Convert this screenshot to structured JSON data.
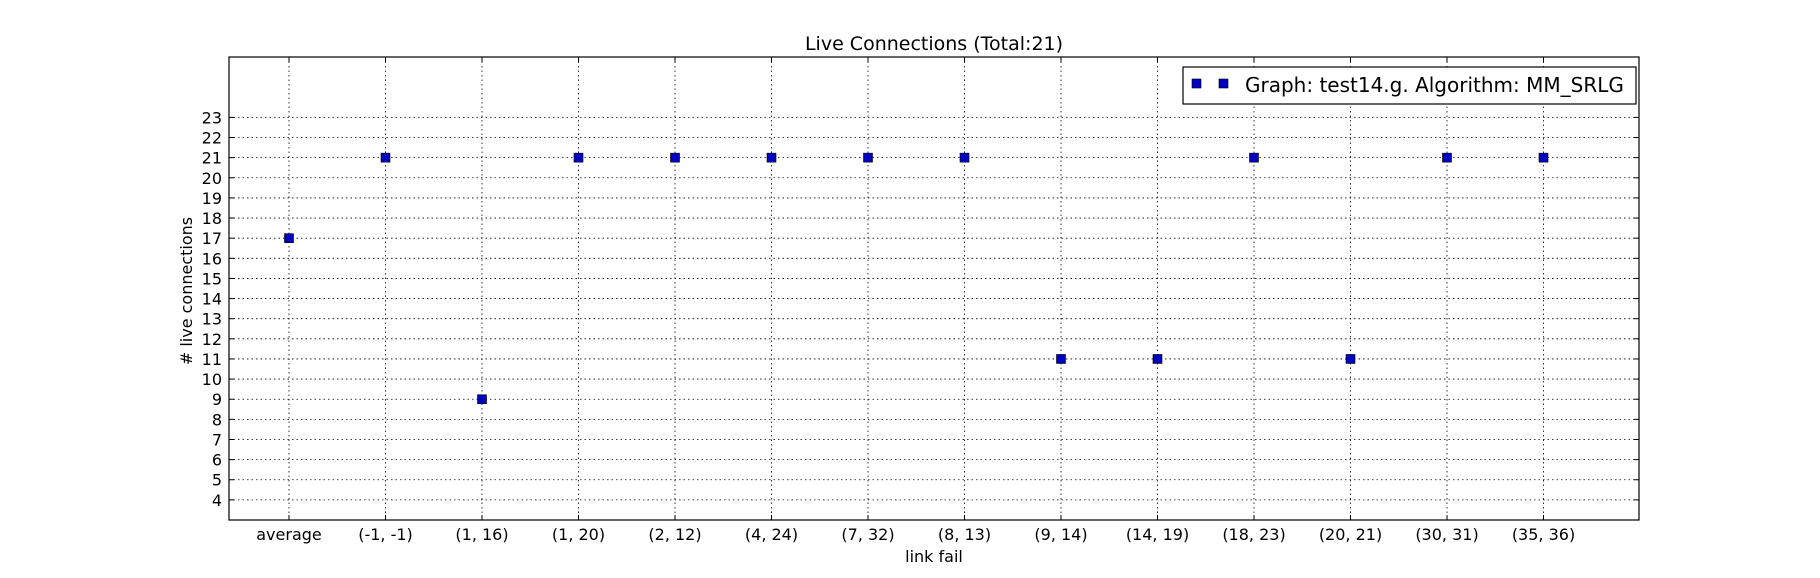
{
  "chart_data": {
    "type": "scatter",
    "title": "Live Connections (Total:21)",
    "xlabel": "link fail",
    "ylabel": "# live connections",
    "categories": [
      "average",
      "(-1, -1)",
      "(1, 16)",
      "(1, 20)",
      "(2, 12)",
      "(4, 24)",
      "(7, 32)",
      "(8, 13)",
      "(9, 14)",
      "(14, 19)",
      "(18, 23)",
      "(20, 21)",
      "(30, 31)",
      "(35, 36)"
    ],
    "yticks": [
      4,
      5,
      6,
      7,
      8,
      9,
      10,
      11,
      12,
      13,
      14,
      15,
      16,
      17,
      18,
      19,
      20,
      21,
      22,
      23
    ],
    "ylim": [
      3.0,
      26.0
    ],
    "grid": true,
    "legend_position": "top-right",
    "series": [
      {
        "name": "Graph: test14.g. Algorithm: MM_SRLG",
        "marker": "square",
        "color": "#0000bf",
        "values": [
          17,
          21,
          9,
          21,
          21,
          21,
          21,
          21,
          11,
          11,
          21,
          11,
          21,
          21
        ]
      }
    ]
  }
}
